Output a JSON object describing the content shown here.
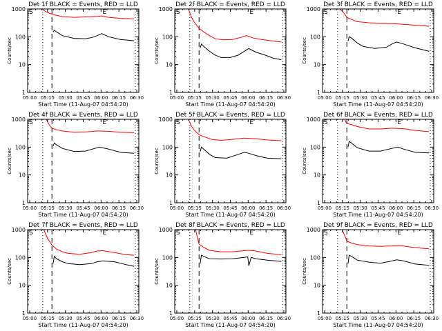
{
  "chart_data": [
    {
      "type": "line",
      "title": "Det 1f BLACK = Events, RED = LLD",
      "xlabel": "Start Time (11-Aug-07 04:54:20)",
      "ylabel": "Counts/sec",
      "yscale": "log",
      "ylim": [
        1,
        1000
      ],
      "yticks": [
        "1",
        "10",
        "100",
        "1000"
      ],
      "xticks": [
        "05:00",
        "05:15",
        "05:30",
        "05:45",
        "06:00",
        "06:15",
        "06:30"
      ],
      "xlim_minutes": [
        0,
        96
      ],
      "markers": {
        "dotted": [
          13,
          93
        ],
        "dashed": 21,
        "S": 0,
        "E": 64
      },
      "series": [
        {
          "name": "LLD",
          "color": "#ff0000",
          "x": [
            12,
            17,
            21,
            24,
            30,
            40,
            50,
            60,
            64,
            70,
            80,
            92
          ],
          "y": [
            1000,
            750,
            650,
            600,
            530,
            500,
            520,
            540,
            560,
            500,
            460,
            440
          ]
        },
        {
          "name": "Events",
          "color": "#000000",
          "x": [
            22,
            23,
            25,
            30,
            40,
            50,
            56,
            60,
            64,
            70,
            80,
            92
          ],
          "y": [
            150,
            170,
            150,
            110,
            88,
            85,
            95,
            110,
            130,
            100,
            80,
            72
          ]
        }
      ]
    },
    {
      "type": "line",
      "title": "Det 2f BLACK = Events, RED = LLD",
      "xlabel": "Start Time (11-Aug-07 04:54:20)",
      "ylabel": "Counts/sec",
      "yscale": "log",
      "ylim": [
        1,
        1000
      ],
      "yticks": [
        "1",
        "10",
        "100",
        "1000"
      ],
      "xticks": [
        "05:00",
        "05:15",
        "05:30",
        "05:45",
        "06:00",
        "06:15",
        "06:30"
      ],
      "xlim_minutes": [
        0,
        96
      ],
      "markers": {
        "dotted": [
          13,
          93
        ],
        "dashed": 21,
        "S": 0,
        "E": 64
      },
      "series": [
        {
          "name": "LLD",
          "color": "#ff0000",
          "x": [
            12,
            14,
            17,
            21,
            25,
            30,
            35,
            42,
            50,
            57,
            62,
            68,
            75,
            85,
            92
          ],
          "y": [
            1000,
            550,
            330,
            200,
            150,
            110,
            85,
            78,
            80,
            95,
            110,
            90,
            80,
            70,
            65
          ]
        },
        {
          "name": "Events",
          "color": "#000000",
          "x": [
            22,
            23,
            25,
            30,
            35,
            40,
            48,
            55,
            60,
            64,
            70,
            78,
            85,
            92
          ],
          "y": [
            40,
            55,
            45,
            30,
            22,
            18,
            18,
            22,
            30,
            38,
            28,
            22,
            17,
            15
          ]
        }
      ]
    },
    {
      "type": "line",
      "title": "Det 3f BLACK = Events, RED = LLD",
      "xlabel": "Start Time (11-Aug-07 04:54:20)",
      "ylabel": "Counts/sec",
      "yscale": "log",
      "ylim": [
        1,
        1000
      ],
      "yticks": [
        "1",
        "10",
        "100",
        "1000"
      ],
      "xticks": [
        "05:00",
        "05:15",
        "05:30",
        "05:45",
        "06:00",
        "06:15",
        "06:30"
      ],
      "xlim_minutes": [
        0,
        96
      ],
      "markers": {
        "dotted": [
          13,
          93
        ],
        "dashed": 21,
        "S": 0,
        "E": 64
      },
      "series": [
        {
          "name": "LLD",
          "color": "#ff0000",
          "x": [
            15,
            18,
            21,
            25,
            30,
            40,
            50,
            60,
            65,
            75,
            85,
            92
          ],
          "y": [
            1000,
            750,
            500,
            420,
            350,
            320,
            300,
            300,
            290,
            270,
            250,
            240
          ]
        },
        {
          "name": "Events",
          "color": "#000000",
          "x": [
            22,
            23,
            25,
            30,
            35,
            45,
            55,
            60,
            64,
            70,
            80,
            92
          ],
          "y": [
            70,
            100,
            90,
            60,
            45,
            38,
            42,
            55,
            65,
            55,
            40,
            30
          ]
        }
      ]
    },
    {
      "type": "line",
      "title": "Det 4f BLACK = Events, RED = LLD",
      "xlabel": "Start Time (11-Aug-07 04:54:20)",
      "ylabel": "Counts/sec",
      "yscale": "log",
      "ylim": [
        1,
        1000
      ],
      "yticks": [
        "1",
        "10",
        "100",
        "1000"
      ],
      "xticks": [
        "05:00",
        "05:15",
        "05:30",
        "05:45",
        "06:00",
        "06:15",
        "06:30"
      ],
      "xlim_minutes": [
        0,
        96
      ],
      "markers": {
        "dotted": [
          13,
          93
        ],
        "dashed": 21,
        "S": 0,
        "E": 64
      },
      "series": [
        {
          "name": "LLD",
          "color": "#ff0000",
          "x": [
            16,
            19,
            21,
            25,
            30,
            40,
            50,
            60,
            70,
            80,
            92
          ],
          "y": [
            1000,
            600,
            480,
            420,
            380,
            340,
            350,
            380,
            370,
            340,
            330
          ]
        },
        {
          "name": "Events",
          "color": "#000000",
          "x": [
            22,
            23,
            25,
            30,
            40,
            50,
            56,
            62,
            70,
            80,
            92
          ],
          "y": [
            110,
            140,
            120,
            90,
            70,
            72,
            85,
            100,
            85,
            65,
            60
          ]
        }
      ]
    },
    {
      "type": "line",
      "title": "Det 5f BLACK = Events, RED = LLD",
      "xlabel": "Start Time (11-Aug-07 04:54:20)",
      "ylabel": "Counts/sec",
      "yscale": "log",
      "ylim": [
        1,
        1000
      ],
      "yticks": [
        "1",
        "10",
        "100",
        "1000"
      ],
      "xticks": [
        "05:00",
        "05:15",
        "05:30",
        "05:45",
        "06:00",
        "06:15",
        "06:30"
      ],
      "xlim_minutes": [
        0,
        96
      ],
      "markers": {
        "dotted": [
          13,
          93
        ],
        "dashed": 21,
        "S": 0,
        "E": 64
      },
      "series": [
        {
          "name": "LLD",
          "color": "#ff0000",
          "x": [
            12,
            14,
            17,
            21,
            26,
            32,
            40,
            50,
            60,
            70,
            80,
            92
          ],
          "y": [
            1000,
            600,
            400,
            280,
            230,
            190,
            175,
            190,
            210,
            200,
            180,
            170
          ]
        },
        {
          "name": "Events",
          "color": "#000000",
          "x": [
            22,
            23,
            25,
            30,
            35,
            45,
            55,
            60,
            64,
            70,
            80,
            92
          ],
          "y": [
            70,
            100,
            85,
            55,
            42,
            40,
            55,
            65,
            60,
            50,
            40,
            38
          ]
        }
      ]
    },
    {
      "type": "line",
      "title": "Det 6f BLACK = Events, RED = LLD",
      "xlabel": "Start Time (11-Aug-07 04:54:20)",
      "ylabel": "Counts/sec",
      "yscale": "log",
      "ylim": [
        1,
        1000
      ],
      "yticks": [
        "1",
        "10",
        "100",
        "1000"
      ],
      "xticks": [
        "05:00",
        "05:15",
        "05:30",
        "05:45",
        "06:00",
        "06:15",
        "06:30"
      ],
      "xlim_minutes": [
        0,
        96
      ],
      "markers": {
        "dotted": [
          13,
          93
        ],
        "dashed": 21,
        "S": 0,
        "E": 64
      },
      "series": [
        {
          "name": "LLD",
          "color": "#ff0000",
          "x": [
            15,
            19,
            21,
            25,
            30,
            40,
            50,
            60,
            70,
            80,
            92
          ],
          "y": [
            1000,
            1000,
            700,
            650,
            550,
            450,
            450,
            480,
            460,
            400,
            360
          ]
        },
        {
          "name": "Events",
          "color": "#000000",
          "x": [
            22,
            23,
            25,
            30,
            40,
            50,
            60,
            65,
            70,
            80,
            92
          ],
          "y": [
            100,
            160,
            140,
            95,
            72,
            72,
            90,
            100,
            85,
            65,
            62
          ]
        }
      ]
    },
    {
      "type": "line",
      "title": "Det 7f BLACK = Events, RED = LLD",
      "xlabel": "Start Time (11-Aug-07 04:54:20)",
      "ylabel": "Counts/sec",
      "yscale": "log",
      "ylim": [
        1,
        1000
      ],
      "yticks": [
        "1",
        "10",
        "100",
        "1000"
      ],
      "xticks": [
        "05:00",
        "05:15",
        "05:30",
        "05:45",
        "06:00",
        "06:15",
        "06:30"
      ],
      "xlim_minutes": [
        0,
        96
      ],
      "markers": {
        "dotted": [
          13,
          93
        ],
        "dashed": 21,
        "S": 0,
        "E": 64
      },
      "series": [
        {
          "name": "LLD",
          "color": "#ff0000",
          "x": [
            14,
            17,
            21,
            25,
            30,
            35,
            45,
            55,
            60,
            65,
            75,
            85,
            92
          ],
          "y": [
            1000,
            500,
            280,
            200,
            160,
            140,
            130,
            150,
            170,
            175,
            150,
            125,
            120
          ]
        },
        {
          "name": "Events",
          "color": "#000000",
          "x": [
            22,
            23,
            25,
            30,
            35,
            45,
            55,
            60,
            65,
            75,
            85,
            92
          ],
          "y": [
            60,
            110,
            90,
            70,
            60,
            55,
            60,
            70,
            75,
            70,
            55,
            48
          ]
        }
      ]
    },
    {
      "type": "line",
      "title": "Det 8f BLACK = Events, RED = LLD",
      "xlabel": "Start Time (11-Aug-07 04:54:20)",
      "ylabel": "Counts/sec",
      "yscale": "log",
      "ylim": [
        1,
        1000
      ],
      "yticks": [
        "1",
        "10",
        "100",
        "1000"
      ],
      "xticks": [
        "05:00",
        "05:15",
        "05:30",
        "05:45",
        "06:00",
        "06:15",
        "06:30"
      ],
      "xlim_minutes": [
        0,
        96
      ],
      "markers": {
        "dotted": [
          13,
          93
        ],
        "dashed": 21,
        "S": 0,
        "E": 64
      },
      "series": [
        {
          "name": "LLD",
          "color": "#ff0000",
          "x": [
            18,
            20,
            21,
            25,
            30,
            40,
            50,
            60,
            64,
            70,
            80,
            92
          ],
          "y": [
            1000,
            450,
            300,
            230,
            180,
            160,
            160,
            175,
            180,
            170,
            140,
            125
          ]
        },
        {
          "name": "Events",
          "color": "#000000",
          "x": [
            22,
            23,
            25,
            30,
            40,
            50,
            60,
            63,
            64,
            66,
            70,
            80,
            92
          ],
          "y": [
            60,
            120,
            110,
            90,
            88,
            90,
            100,
            105,
            50,
            100,
            90,
            80,
            72
          ]
        }
      ]
    },
    {
      "type": "line",
      "title": "Det 9f BLACK = Events, RED = LLD",
      "xlabel": "Start Time (11-Aug-07 04:54:20)",
      "ylabel": "Counts/sec",
      "yscale": "log",
      "ylim": [
        1,
        1000
      ],
      "yticks": [
        "1",
        "10",
        "100",
        "1000"
      ],
      "xticks": [
        "05:00",
        "05:15",
        "05:30",
        "05:45",
        "06:00",
        "06:15",
        "06:30"
      ],
      "xlim_minutes": [
        0,
        96
      ],
      "markers": {
        "dotted": [
          13,
          93
        ],
        "dashed": 21,
        "S": 0,
        "E": 64
      },
      "series": [
        {
          "name": "LLD",
          "color": "#ff0000",
          "x": [
            17,
            20,
            21,
            25,
            30,
            40,
            50,
            60,
            66,
            75,
            85,
            92
          ],
          "y": [
            1000,
            500,
            380,
            330,
            290,
            260,
            250,
            260,
            270,
            240,
            215,
            205
          ]
        },
        {
          "name": "Events",
          "color": "#000000",
          "x": [
            22,
            23,
            25,
            30,
            40,
            50,
            60,
            64,
            70,
            80,
            92
          ],
          "y": [
            60,
            120,
            110,
            80,
            68,
            62,
            75,
            82,
            75,
            58,
            52
          ]
        }
      ]
    }
  ]
}
